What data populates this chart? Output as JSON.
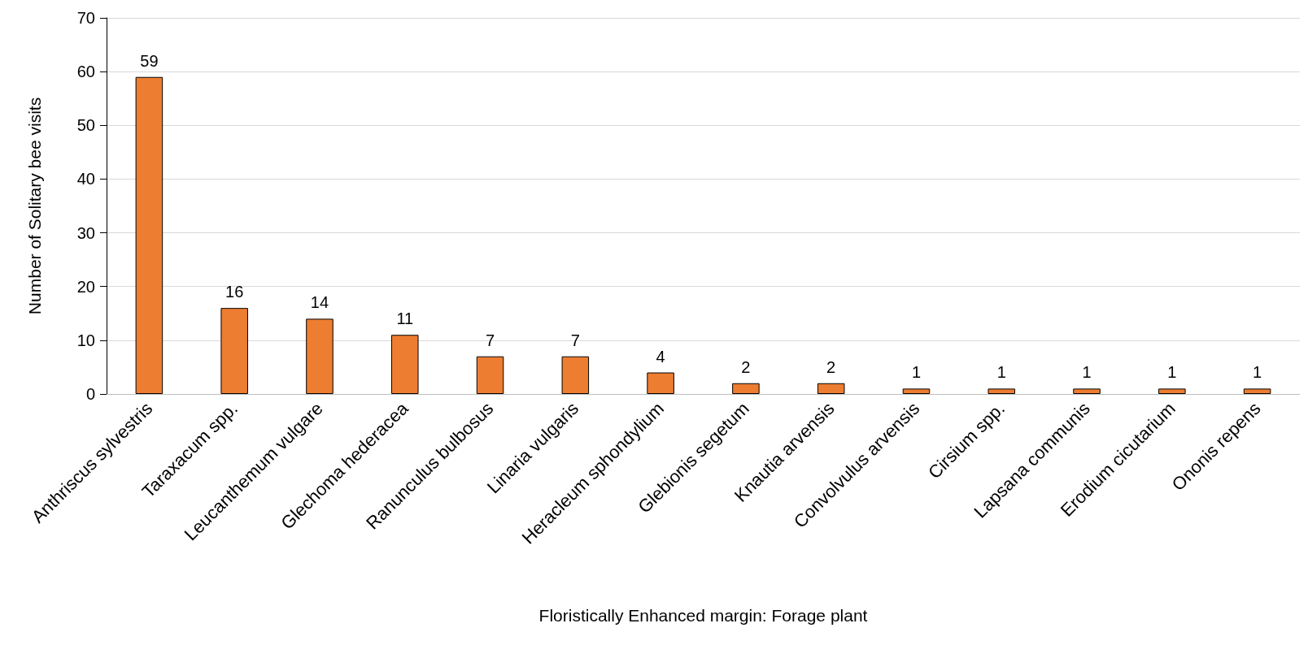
{
  "chart_data": {
    "type": "bar",
    "xlabel": "Floristically Enhanced margin: Forage plant",
    "ylabel": "Number of Solitary bee visits",
    "categories": [
      "Anthriscus sylvestris",
      "Taraxacum spp.",
      "Leucanthemum vulgare",
      "Glechoma hederacea",
      "Ranunculus bulbosus",
      "Linaria vulgaris",
      "Heracleum sphondylium",
      "Glebionis segetum",
      "Knautia arvensis",
      "Convolvulus arvensis",
      "Cirsium spp.",
      "Lapsana communis",
      "Erodium cicutarium",
      "Ononis repens"
    ],
    "values": [
      59,
      16,
      14,
      11,
      7,
      7,
      4,
      2,
      2,
      1,
      1,
      1,
      1,
      1
    ],
    "color": "#ed7d31",
    "ylim": [
      0,
      70
    ],
    "yticks": [
      0,
      10,
      20,
      30,
      40,
      50,
      60,
      70
    ],
    "grid": "y",
    "data_labels": true
  }
}
